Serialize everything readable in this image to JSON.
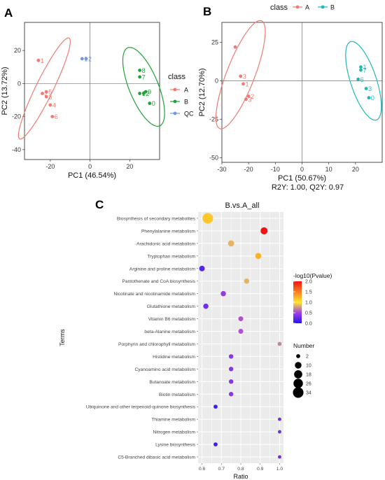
{
  "panels": {
    "a": "A",
    "b": "B",
    "c": "C"
  },
  "colors": {
    "A": "#F07B74",
    "B": "#1EA334",
    "QC": "#6E9BDC",
    "B_teal": "#1FB8BB",
    "panel_bg": "#EBEBEB",
    "grid": "#FFFFFF"
  },
  "chart_data": [
    {
      "id": "pca_a",
      "type": "scatter",
      "title": "",
      "xlabel": "PC1 (46.54%)",
      "ylabel": "PC2 (13.72%)",
      "xlim": [
        -33,
        35
      ],
      "ylim": [
        -46,
        37
      ],
      "xticks": [
        "-20",
        "0",
        "20"
      ],
      "yticks": [
        "20",
        "0",
        "-20",
        "-40"
      ],
      "legend": {
        "title": "class",
        "entries": [
          "A",
          "B",
          "QC"
        ],
        "position": "right"
      },
      "series": [
        {
          "name": "A",
          "points": [
            {
              "x": -26,
              "y": 14,
              "label": "1"
            },
            {
              "x": -24,
              "y": -6,
              "label": "2"
            },
            {
              "x": -22,
              "y": -5,
              "label": "5"
            },
            {
              "x": -22,
              "y": -8,
              "label": "3"
            },
            {
              "x": -20,
              "y": -13,
              "label": "4"
            },
            {
              "x": -19,
              "y": -20,
              "label": "6"
            }
          ]
        },
        {
          "name": "B",
          "points": [
            {
              "x": 25,
              "y": 8,
              "label": "8"
            },
            {
              "x": 25,
              "y": 4,
              "label": "7"
            },
            {
              "x": 25,
              "y": -6,
              "label": "1"
            },
            {
              "x": 27,
              "y": -6,
              "label": "2"
            },
            {
              "x": 28,
              "y": -5,
              "label": "9"
            },
            {
              "x": 30,
              "y": -12,
              "label": "0"
            }
          ]
        },
        {
          "name": "QC",
          "points": [
            {
              "x": -4,
              "y": 15,
              "label": "1"
            },
            {
              "x": -2,
              "y": 15,
              "label": "2"
            }
          ]
        }
      ],
      "ellipses": [
        {
          "series": "A",
          "cx": -23,
          "cy": -3,
          "rx": 33,
          "ry": 4.5,
          "angle_deg": 68
        },
        {
          "series": "B",
          "cx": 27,
          "cy": -2,
          "rx": 25,
          "ry": 7.5,
          "angle_deg": -72
        }
      ]
    },
    {
      "id": "pca_b",
      "type": "scatter",
      "title": "",
      "xlabel": "PC1 (50.67%)",
      "subtitle": "R2Y: 1.00, Q2Y: 0.97",
      "ylabel": "PC2 (12.70%)",
      "xlim": [
        -30,
        30
      ],
      "ylim": [
        -53,
        38
      ],
      "xticks": [
        "-30",
        "-20",
        "-10",
        "0",
        "10",
        "20"
      ],
      "yticks": [
        "25",
        "0",
        "-25",
        "-50"
      ],
      "legend": {
        "title": "class",
        "entries": [
          "A",
          "B"
        ],
        "position": "top"
      },
      "series": [
        {
          "name": "A",
          "points": [
            {
              "x": -25,
              "y": 22,
              "label": ""
            },
            {
              "x": -23,
              "y": 3,
              "label": "3"
            },
            {
              "x": -22,
              "y": -2,
              "label": "1"
            },
            {
              "x": -21,
              "y": -12,
              "label": "3"
            },
            {
              "x": -20,
              "y": -10,
              "label": "2"
            }
          ]
        },
        {
          "name": "B",
          "points": [
            {
              "x": 22,
              "y": 9,
              "label": "1"
            },
            {
              "x": 22,
              "y": 7,
              "label": "7"
            },
            {
              "x": 21,
              "y": 1,
              "label": "6"
            },
            {
              "x": 24,
              "y": -5,
              "label": "3"
            },
            {
              "x": 25,
              "y": -11,
              "label": "0"
            }
          ]
        }
      ],
      "ellipses": [
        {
          "series": "A",
          "cx": -23,
          "cy": 4,
          "rx": 36,
          "ry": 5.5,
          "angle_deg": 78
        },
        {
          "series": "B",
          "cx": 23,
          "cy": 0,
          "rx": 26,
          "ry": 5,
          "angle_deg": -80
        }
      ]
    },
    {
      "id": "kegg_c",
      "type": "scatter",
      "title": "B.vs.A_all",
      "xlabel": "Ratio",
      "ylabel": "Terms",
      "xlim": [
        0.58,
        1.02
      ],
      "xticks": [
        0.6,
        0.7,
        0.8,
        0.9,
        1.0
      ],
      "xtick_labels": [
        "0.6",
        "0.7",
        "0.8",
        "0.9",
        "1.0"
      ],
      "color_legend": {
        "title": "-log10(Pvalue)",
        "ticks": [
          "2.0",
          "1.5",
          "1.0",
          "0.5",
          "0.0"
        ],
        "min": 0,
        "max": 2
      },
      "size_legend": {
        "title": "Number",
        "entries": [
          2,
          10,
          18,
          26,
          34
        ]
      },
      "terms": [
        "Biosynthesis of secondary metabolites",
        "Phenylalanine metabolism",
        "Arachidonic acid metabolism",
        "Tryptophan metabolism",
        "Arginine and proline metabolism",
        "Pantothenate and CoA biosynthesis",
        "Nicotinate and nicotinamide metabolism",
        "Glutathione metabolism",
        "Vitamin B6 metabolism",
        "beta-Alanine metabolism",
        "Porphyrin and chlorophyll metabolism",
        "Histidine metabolism",
        "Cyanoamino acid metabolism",
        "Butanoate metabolism",
        "Biotin metabolism",
        "Ubiquinone and other terpenoid-quinone biosynthesis",
        "Thiamine metabolism",
        "Nitrogen metabolism",
        "Lysine biosynthesis",
        "C5-Branched dibasic acid metabolism"
      ],
      "points": [
        {
          "ratio": 0.63,
          "number": 34,
          "log10p": 1.15
        },
        {
          "ratio": 0.92,
          "number": 12,
          "log10p": 2.0
        },
        {
          "ratio": 0.75,
          "number": 8,
          "log10p": 0.85
        },
        {
          "ratio": 0.89,
          "number": 8,
          "log10p": 1.25
        },
        {
          "ratio": 0.6,
          "number": 6,
          "log10p": 0.2
        },
        {
          "ratio": 0.83,
          "number": 5,
          "log10p": 0.85
        },
        {
          "ratio": 0.71,
          "number": 5,
          "log10p": 0.45
        },
        {
          "ratio": 0.62,
          "number": 5,
          "log10p": 0.3
        },
        {
          "ratio": 0.8,
          "number": 4,
          "log10p": 0.55
        },
        {
          "ratio": 0.8,
          "number": 4,
          "log10p": 0.55
        },
        {
          "ratio": 1.0,
          "number": 2,
          "log10p": 0.7
        },
        {
          "ratio": 0.75,
          "number": 3,
          "log10p": 0.4
        },
        {
          "ratio": 0.75,
          "number": 3,
          "log10p": 0.4
        },
        {
          "ratio": 0.75,
          "number": 3,
          "log10p": 0.4
        },
        {
          "ratio": 0.75,
          "number": 3,
          "log10p": 0.4
        },
        {
          "ratio": 0.67,
          "number": 2,
          "log10p": 0.1
        },
        {
          "ratio": 1.0,
          "number": 1,
          "log10p": 0.3
        },
        {
          "ratio": 1.0,
          "number": 1,
          "log10p": 0.3
        },
        {
          "ratio": 0.67,
          "number": 2,
          "log10p": 0.1
        },
        {
          "ratio": 1.0,
          "number": 1,
          "log10p": 0.3
        }
      ]
    }
  ]
}
